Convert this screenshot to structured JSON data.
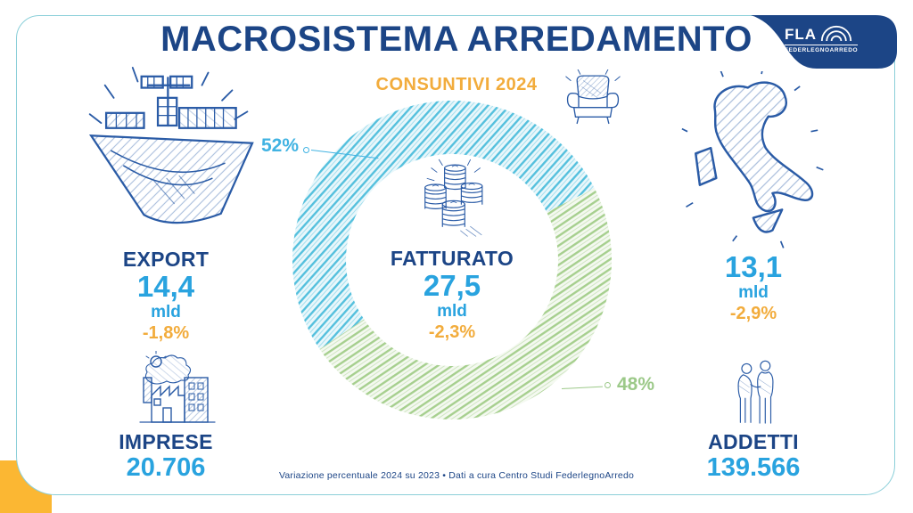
{
  "header": {
    "title": "MACROSISTEMA ARREDAMENTO",
    "subtitle": "CONSUNTIVI 2024"
  },
  "brand": {
    "logo_top": "FLA",
    "logo_bottom": "FEDERLEGNOARREDO"
  },
  "stats": {
    "export": {
      "label": "EXPORT",
      "value": "14,4",
      "unit": "mld",
      "change": "-1,8%"
    },
    "imprese": {
      "label": "IMPRESE",
      "value": "20.706"
    },
    "mercato_italia": {
      "value": "13,1",
      "unit": "mld",
      "change": "-2,9%"
    },
    "addetti": {
      "label": "ADDETTI",
      "value": "139.566"
    }
  },
  "chart_data": {
    "type": "pie",
    "donut": true,
    "title": "FATTURATO 27,5 mld (-2,3%)",
    "legend_position": "callouts",
    "start_angle": 146,
    "center": {
      "label": "FATTURATO",
      "value": "27,5",
      "unit": "mld",
      "change": "-2,3%"
    },
    "slices": [
      {
        "name": "quota-blu",
        "label": "52%",
        "value": 52,
        "color": "#54c0dd",
        "label_color": "#41b3e2"
      },
      {
        "name": "quota-verde",
        "label": "48%",
        "value": 48,
        "color": "#a6cf8e",
        "label_color": "#9cc989"
      }
    ]
  },
  "icons": {
    "export": "cargo-ship-icon",
    "imprese": "factory-icon",
    "mercato_italia": "italy-map-icon",
    "addetti": "workers-icon",
    "fatturato": "coin-stacks-icon",
    "settore": "armchair-icon",
    "logo": "fla-arch-icon"
  },
  "footer": {
    "note": "Variazione percentuale 2024 su 2023 • Dati a cura Centro Studi FederlegnoArredo"
  },
  "colors": {
    "navy": "#1c4586",
    "bright": "#29a3df",
    "yellow": "#f2ac3c",
    "donutBlue": "#54c0dd",
    "donutGreen": "#a6cf8e",
    "labelBlue": "#41b3e2",
    "labelGreen": "#9cc989",
    "border": "#8bcfd9",
    "sketch": "#2a5ba6",
    "cornerYellow": "#fbb733"
  }
}
